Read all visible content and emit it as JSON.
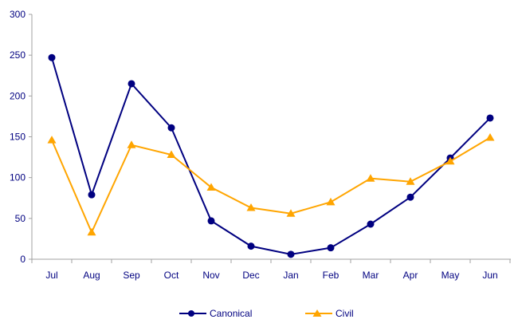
{
  "chart_data": {
    "type": "line",
    "categories": [
      "Jul",
      "Aug",
      "Sep",
      "Oct",
      "Nov",
      "Dec",
      "Jan",
      "Feb",
      "Mar",
      "Apr",
      "May",
      "Jun"
    ],
    "series": [
      {
        "name": "Canonical",
        "color": "#000080",
        "marker": "circle",
        "values": [
          247,
          79,
          215,
          161,
          47,
          16,
          6,
          14,
          43,
          76,
          124,
          173
        ]
      },
      {
        "name": "Civil",
        "color": "#FFA500",
        "marker": "triangle",
        "values": [
          146,
          33,
          140,
          128,
          88,
          63,
          56,
          70,
          99,
          95,
          120,
          149
        ]
      }
    ],
    "title": "",
    "xlabel": "",
    "ylabel": "",
    "ylim": [
      0,
      300
    ],
    "y_ticks": [
      0,
      50,
      100,
      150,
      200,
      250,
      300
    ],
    "grid": false,
    "legend_position": "bottom",
    "axis_color": "#a0a0a0",
    "label_color": "#000080"
  }
}
